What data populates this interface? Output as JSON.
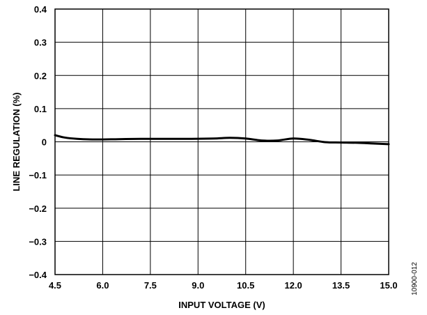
{
  "chart_data": {
    "type": "line",
    "xlabel": "INPUT VOLTAGE (V)",
    "ylabel": "LINE REGULATION (%)",
    "xlim": [
      4.5,
      15.0
    ],
    "ylim": [
      -0.4,
      0.4
    ],
    "x_ticks": [
      "4.5",
      "6.0",
      "7.5",
      "9.0",
      "10.5",
      "12.0",
      "13.5",
      "15.0"
    ],
    "x_tick_values": [
      4.5,
      6.0,
      7.5,
      9.0,
      10.5,
      12.0,
      13.5,
      15.0
    ],
    "y_ticks": [
      "0.4",
      "0.3",
      "0.2",
      "0.1",
      "0",
      "−0.1",
      "−0.2",
      "−0.3",
      "−0.4"
    ],
    "y_tick_values": [
      0.4,
      0.3,
      0.2,
      0.1,
      0,
      -0.1,
      -0.2,
      -0.3,
      -0.4
    ],
    "grid": true,
    "series": [
      {
        "color": "#000000",
        "x": [
          4.5,
          4.8,
          5.2,
          5.8,
          6.5,
          7.2,
          8.0,
          8.8,
          9.5,
          10.0,
          10.5,
          11.0,
          11.5,
          12.0,
          12.5,
          13.0,
          13.5,
          14.0,
          14.5,
          15.0
        ],
        "y": [
          0.02,
          0.013,
          0.009,
          0.007,
          0.008,
          0.009,
          0.009,
          0.009,
          0.01,
          0.012,
          0.01,
          0.004,
          0.004,
          0.01,
          0.006,
          -0.001,
          -0.002,
          -0.003,
          -0.005,
          -0.007
        ]
      }
    ]
  },
  "figure_code": "10900-012"
}
